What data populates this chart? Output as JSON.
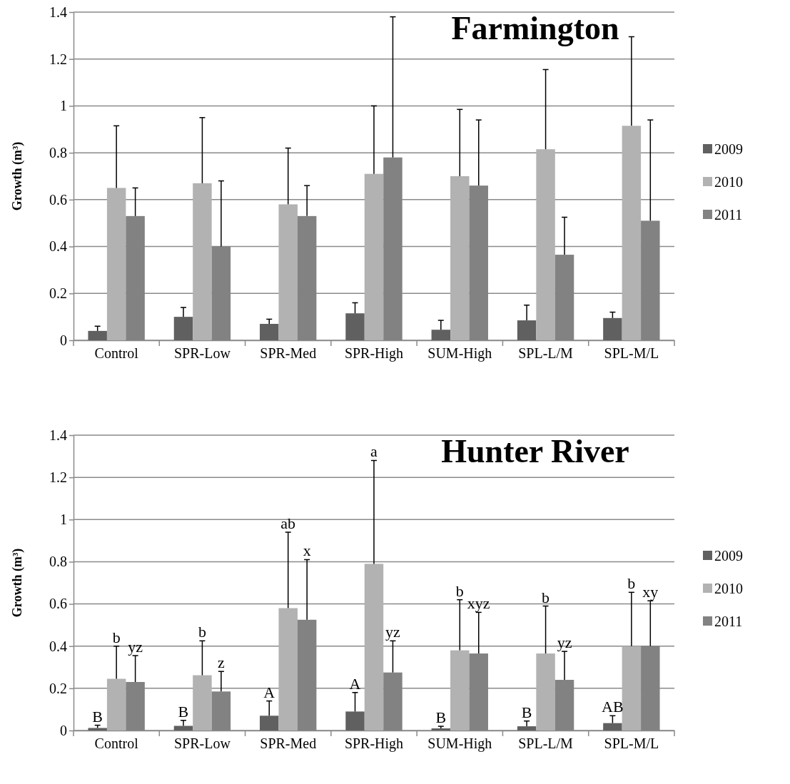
{
  "chart_data": [
    {
      "type": "bar",
      "title": "Farmington",
      "ylabel": "Growth (m³)",
      "categories": [
        "Control",
        "SPR-Low",
        "SPR-Med",
        "SPR-High",
        "SUM-High",
        "SPL-L/M",
        "SPL-M/L"
      ],
      "ylim": [
        0,
        1.4
      ],
      "yticks": [
        0,
        0.2,
        0.4,
        0.6,
        0.8,
        1,
        1.2,
        1.4
      ],
      "grid": "y",
      "legend": "right",
      "series": [
        {
          "name": "2009",
          "color": "#606060",
          "values": [
            0.04,
            0.1,
            0.07,
            0.115,
            0.045,
            0.085,
            0.095
          ],
          "errors": [
            [
              0.04,
              0.06
            ],
            [
              0.1,
              0.14
            ],
            [
              0.07,
              0.09
            ],
            [
              0.115,
              0.16
            ],
            [
              0.045,
              0.085
            ],
            [
              0.085,
              0.15
            ],
            [
              0.095,
              0.12
            ]
          ]
        },
        {
          "name": "2010",
          "color": "#b2b2b2",
          "values": [
            0.65,
            0.67,
            0.58,
            0.71,
            0.7,
            0.815,
            0.915
          ],
          "errors": [
            [
              0.65,
              0.915
            ],
            [
              0.67,
              0.95
            ],
            [
              0.58,
              0.82
            ],
            [
              0.71,
              1.0
            ],
            [
              0.7,
              0.985
            ],
            [
              0.815,
              1.155
            ],
            [
              0.915,
              1.295
            ]
          ]
        },
        {
          "name": "2011",
          "color": "#828282",
          "values": [
            0.53,
            0.4,
            0.53,
            0.78,
            0.66,
            0.365,
            0.51
          ],
          "errors": [
            [
              0.53,
              0.65
            ],
            [
              0.4,
              0.68
            ],
            [
              0.53,
              0.66
            ],
            [
              0.78,
              1.38
            ],
            [
              0.66,
              0.94
            ],
            [
              0.365,
              0.525
            ],
            [
              0.51,
              0.94
            ]
          ]
        }
      ]
    },
    {
      "type": "bar",
      "title": "Hunter River",
      "ylabel": "Growth (m³)",
      "categories": [
        "Control",
        "SPR-Low",
        "SPR-Med",
        "SPR-High",
        "SUM-High",
        "SPL-L/M",
        "SPL-M/L"
      ],
      "ylim": [
        0,
        1.4
      ],
      "yticks": [
        0,
        0.2,
        0.4,
        0.6,
        0.8,
        1,
        1.2,
        1.4
      ],
      "grid": "y",
      "legend": "right",
      "series": [
        {
          "name": "2009",
          "color": "#606060",
          "values": [
            0.012,
            0.022,
            0.07,
            0.09,
            0.01,
            0.02,
            0.035
          ],
          "errors": [
            [
              0.012,
              0.025
            ],
            [
              0.022,
              0.048
            ],
            [
              0.07,
              0.14
            ],
            [
              0.09,
              0.18
            ],
            [
              0.01,
              0.02
            ],
            [
              0.02,
              0.045
            ],
            [
              0.035,
              0.07
            ]
          ]
        },
        {
          "name": "2010",
          "color": "#b2b2b2",
          "values": [
            0.245,
            0.262,
            0.58,
            0.79,
            0.38,
            0.365,
            0.4
          ],
          "errors": [
            [
              0.245,
              0.4
            ],
            [
              0.262,
              0.425
            ],
            [
              0.58,
              0.94
            ],
            [
              0.79,
              1.28
            ],
            [
              0.38,
              0.62
            ],
            [
              0.365,
              0.59
            ],
            [
              0.4,
              0.655
            ]
          ]
        },
        {
          "name": "2011",
          "color": "#828282",
          "values": [
            0.23,
            0.185,
            0.525,
            0.275,
            0.365,
            0.24,
            0.4
          ],
          "errors": [
            [
              0.23,
              0.355
            ],
            [
              0.185,
              0.28
            ],
            [
              0.525,
              0.81
            ],
            [
              0.275,
              0.425
            ],
            [
              0.365,
              0.56
            ],
            [
              0.24,
              0.375
            ],
            [
              0.4,
              0.615
            ]
          ]
        }
      ],
      "annotations": [
        "B",
        "B",
        "A",
        "A",
        "B",
        "B",
        "AB",
        "b",
        "b",
        "ab",
        "a",
        "b",
        "b",
        "b",
        "yz",
        "z",
        "x",
        "yz",
        "xyz",
        "yz",
        "xy"
      ]
    }
  ]
}
